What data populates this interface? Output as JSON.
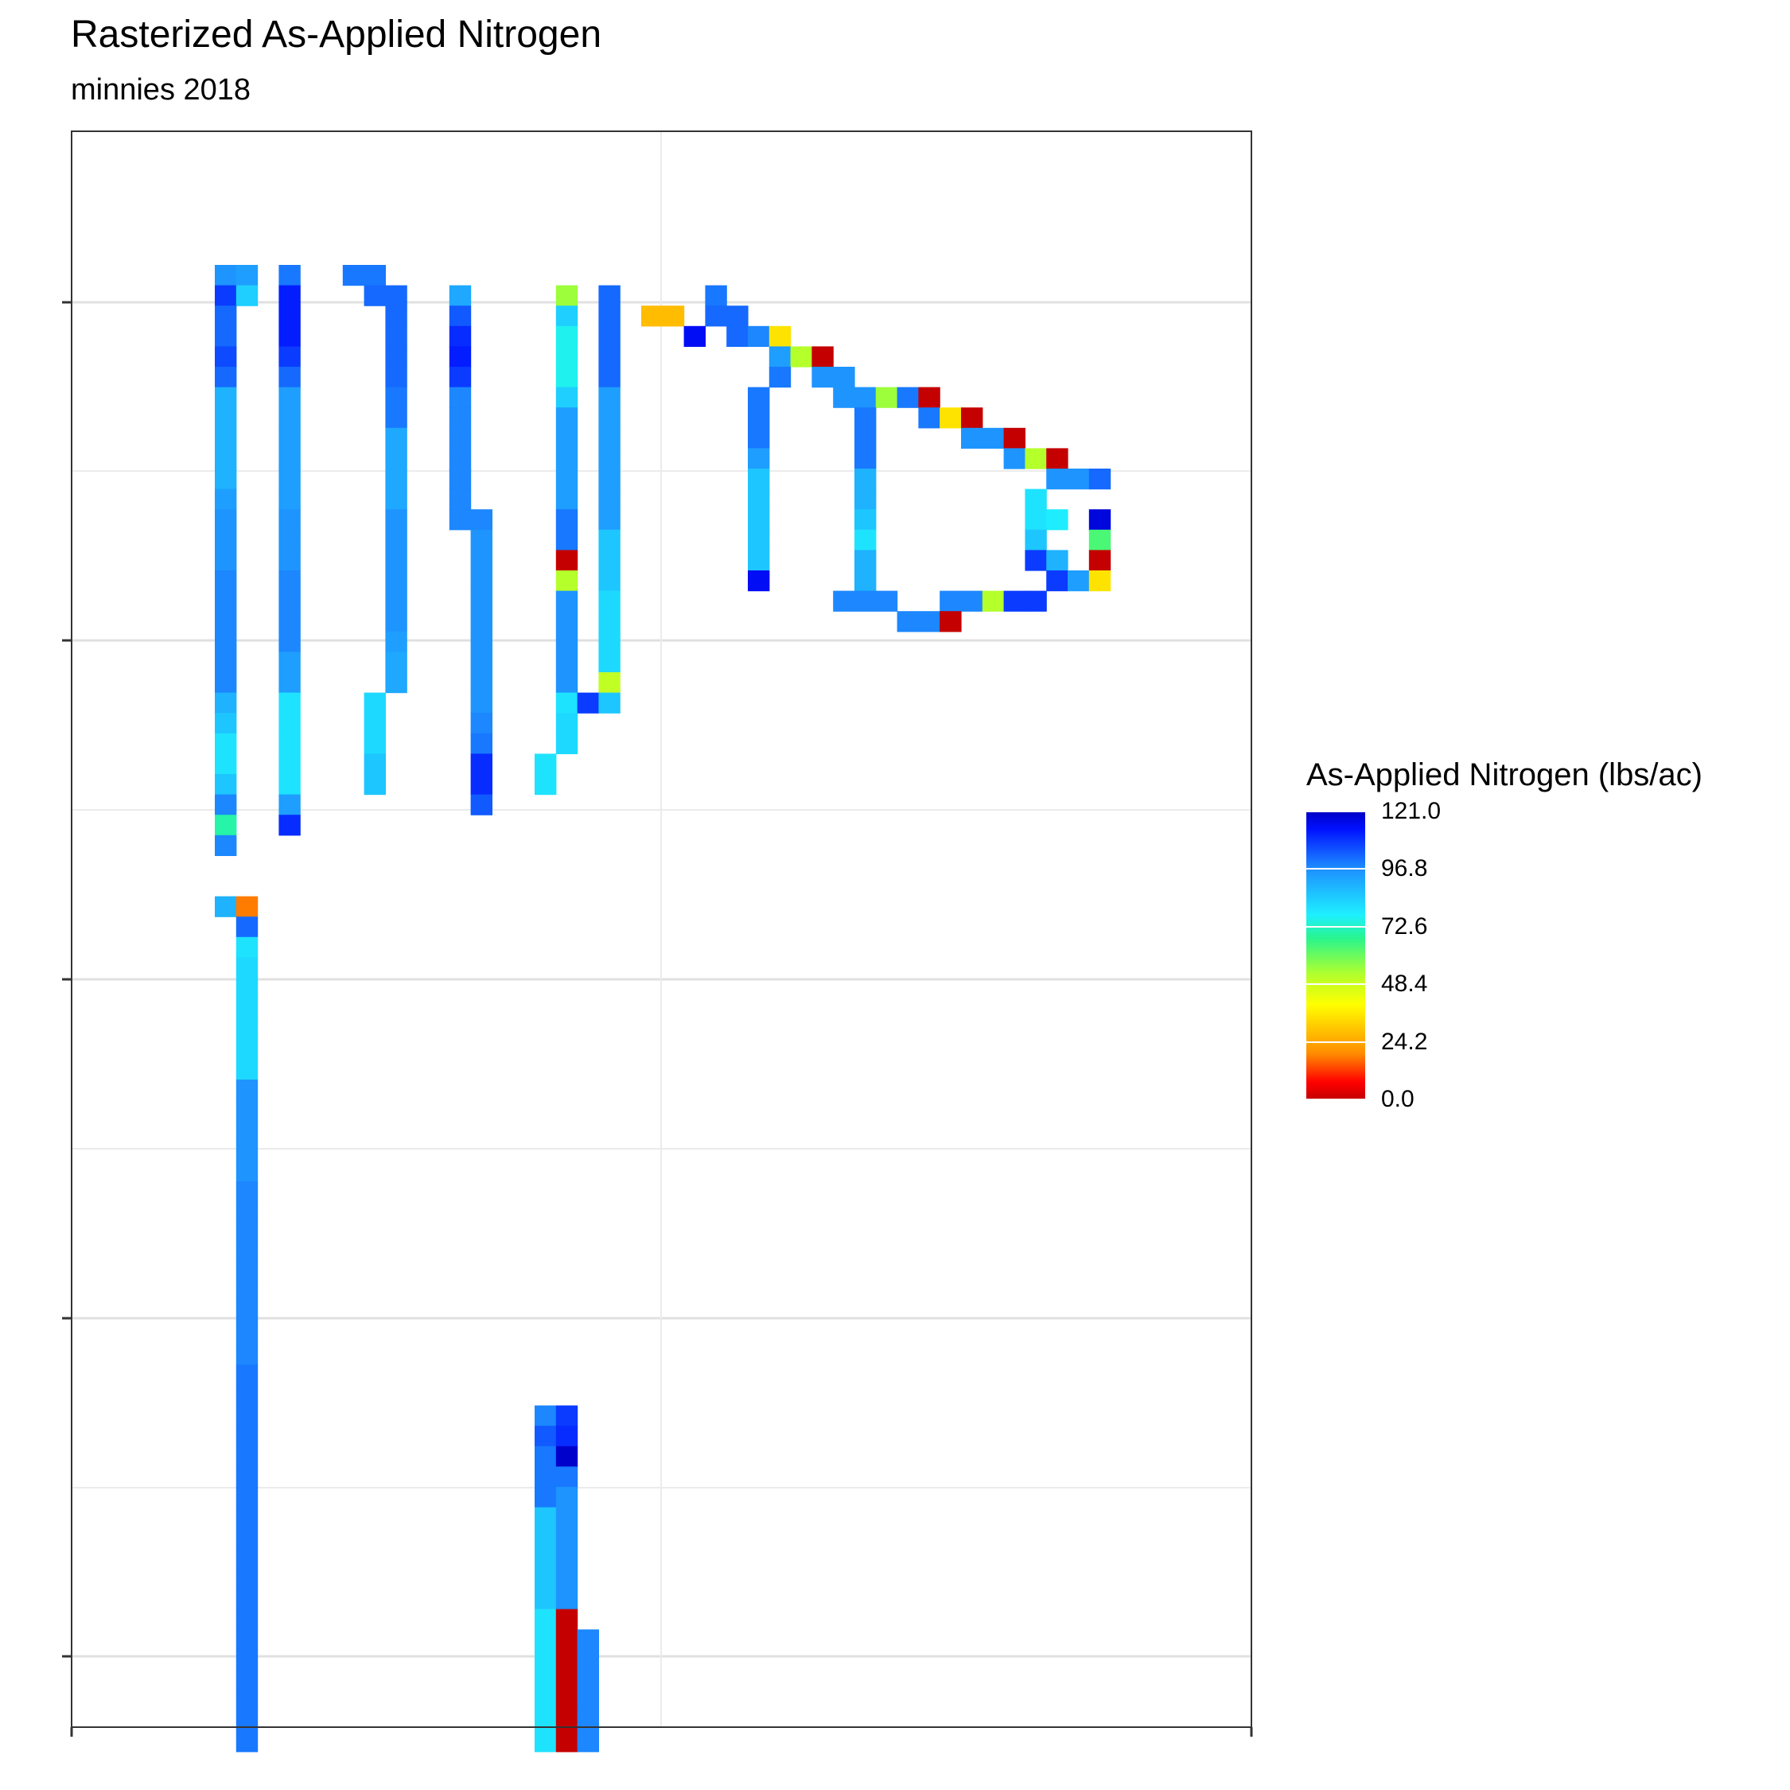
{
  "chart_data": {
    "type": "heatmap",
    "title": "Rasterized As-Applied Nitrogen",
    "subtitle": "minnies 2018",
    "xlabel": "",
    "ylabel": "",
    "x_tick_labels": [],
    "y_tick_labels": [],
    "grid": true,
    "legend": {
      "title": "As-Applied Nitrogen (lbs/ac)",
      "placement": "right",
      "breaks": [
        "121.0",
        "96.8",
        "72.6",
        "48.4",
        "24.2",
        "0.0"
      ],
      "min": 0,
      "max": 121,
      "palette": [
        "#c40000",
        "#ff0000",
        "#ff8c00",
        "#ffff00",
        "#adff2f",
        "#28f58e",
        "#1ef0ff",
        "#1e90ff",
        "#0010ff",
        "#0000c4"
      ]
    },
    "grid_size": {
      "cols": 56,
      "rows": 80
    },
    "cells": [
      [
        7,
        0,
        96
      ],
      [
        8,
        0,
        94
      ],
      [
        10,
        0,
        100
      ],
      [
        13,
        0,
        100
      ],
      [
        14,
        0,
        100
      ],
      [
        7,
        1,
        108
      ],
      [
        8,
        1,
        84
      ],
      [
        10,
        1,
        112
      ],
      [
        14,
        1,
        102
      ],
      [
        15,
        1,
        102
      ],
      [
        18,
        1,
        92
      ],
      [
        23,
        1,
        55
      ],
      [
        25,
        1,
        102
      ],
      [
        30,
        1,
        100
      ],
      [
        7,
        2,
        102
      ],
      [
        10,
        2,
        112
      ],
      [
        15,
        2,
        102
      ],
      [
        18,
        2,
        104
      ],
      [
        23,
        2,
        84
      ],
      [
        25,
        2,
        102
      ],
      [
        27,
        2,
        28
      ],
      [
        28,
        2,
        28
      ],
      [
        30,
        2,
        102
      ],
      [
        31,
        2,
        102
      ],
      [
        7,
        3,
        102
      ],
      [
        10,
        3,
        112
      ],
      [
        15,
        3,
        102
      ],
      [
        18,
        3,
        110
      ],
      [
        23,
        3,
        76
      ],
      [
        25,
        3,
        102
      ],
      [
        29,
        3,
        115
      ],
      [
        31,
        3,
        102
      ],
      [
        32,
        3,
        98
      ],
      [
        33,
        3,
        35
      ],
      [
        7,
        4,
        106
      ],
      [
        10,
        4,
        108
      ],
      [
        15,
        4,
        102
      ],
      [
        18,
        4,
        112
      ],
      [
        23,
        4,
        76
      ],
      [
        25,
        4,
        102
      ],
      [
        33,
        4,
        94
      ],
      [
        34,
        4,
        52
      ],
      [
        35,
        4,
        0
      ],
      [
        7,
        5,
        102
      ],
      [
        10,
        5,
        102
      ],
      [
        15,
        5,
        102
      ],
      [
        18,
        5,
        108
      ],
      [
        23,
        5,
        76
      ],
      [
        25,
        5,
        102
      ],
      [
        33,
        5,
        100
      ],
      [
        35,
        5,
        96
      ],
      [
        36,
        5,
        96
      ],
      [
        7,
        6,
        90
      ],
      [
        10,
        6,
        94
      ],
      [
        15,
        6,
        100
      ],
      [
        18,
        6,
        98
      ],
      [
        23,
        6,
        84
      ],
      [
        25,
        6,
        94
      ],
      [
        32,
        6,
        100
      ],
      [
        36,
        6,
        96
      ],
      [
        37,
        6,
        96
      ],
      [
        38,
        6,
        55
      ],
      [
        39,
        6,
        100
      ],
      [
        40,
        6,
        0
      ],
      [
        7,
        7,
        90
      ],
      [
        10,
        7,
        94
      ],
      [
        15,
        7,
        100
      ],
      [
        18,
        7,
        98
      ],
      [
        23,
        7,
        94
      ],
      [
        25,
        7,
        94
      ],
      [
        32,
        7,
        100
      ],
      [
        37,
        7,
        100
      ],
      [
        40,
        7,
        100
      ],
      [
        41,
        7,
        35
      ],
      [
        42,
        7,
        0
      ],
      [
        7,
        8,
        90
      ],
      [
        10,
        8,
        94
      ],
      [
        15,
        8,
        92
      ],
      [
        18,
        8,
        98
      ],
      [
        23,
        8,
        94
      ],
      [
        25,
        8,
        94
      ],
      [
        32,
        8,
        100
      ],
      [
        37,
        8,
        100
      ],
      [
        42,
        8,
        96
      ],
      [
        43,
        8,
        96
      ],
      [
        44,
        8,
        0
      ],
      [
        7,
        9,
        90
      ],
      [
        10,
        9,
        94
      ],
      [
        15,
        9,
        92
      ],
      [
        18,
        9,
        98
      ],
      [
        23,
        9,
        94
      ],
      [
        25,
        9,
        94
      ],
      [
        32,
        9,
        94
      ],
      [
        37,
        9,
        100
      ],
      [
        44,
        9,
        96
      ],
      [
        45,
        9,
        52
      ],
      [
        46,
        9,
        0
      ],
      [
        7,
        10,
        90
      ],
      [
        10,
        10,
        94
      ],
      [
        15,
        10,
        92
      ],
      [
        18,
        10,
        98
      ],
      [
        23,
        10,
        94
      ],
      [
        25,
        10,
        94
      ],
      [
        32,
        10,
        86
      ],
      [
        37,
        10,
        90
      ],
      [
        46,
        10,
        96
      ],
      [
        47,
        10,
        96
      ],
      [
        48,
        10,
        102
      ],
      [
        7,
        11,
        94
      ],
      [
        10,
        11,
        94
      ],
      [
        15,
        11,
        92
      ],
      [
        18,
        11,
        98
      ],
      [
        23,
        11,
        94
      ],
      [
        25,
        11,
        94
      ],
      [
        32,
        11,
        86
      ],
      [
        37,
        11,
        90
      ],
      [
        45,
        11,
        80
      ],
      [
        7,
        12,
        96
      ],
      [
        10,
        12,
        96
      ],
      [
        15,
        12,
        96
      ],
      [
        18,
        12,
        98
      ],
      [
        19,
        12,
        98
      ],
      [
        23,
        12,
        100
      ],
      [
        25,
        12,
        94
      ],
      [
        32,
        12,
        86
      ],
      [
        37,
        12,
        86
      ],
      [
        45,
        12,
        80
      ],
      [
        46,
        12,
        78
      ],
      [
        48,
        12,
        118
      ],
      [
        7,
        13,
        96
      ],
      [
        10,
        13,
        96
      ],
      [
        15,
        13,
        96
      ],
      [
        19,
        13,
        96
      ],
      [
        23,
        13,
        100
      ],
      [
        25,
        13,
        86
      ],
      [
        32,
        13,
        86
      ],
      [
        37,
        13,
        80
      ],
      [
        45,
        13,
        86
      ],
      [
        48,
        13,
        64
      ],
      [
        7,
        14,
        96
      ],
      [
        10,
        14,
        96
      ],
      [
        15,
        14,
        96
      ],
      [
        19,
        14,
        96
      ],
      [
        23,
        14,
        0
      ],
      [
        25,
        14,
        86
      ],
      [
        32,
        14,
        86
      ],
      [
        37,
        14,
        90
      ],
      [
        45,
        14,
        108
      ],
      [
        46,
        14,
        90
      ],
      [
        48,
        14,
        0
      ],
      [
        7,
        15,
        98
      ],
      [
        10,
        15,
        98
      ],
      [
        15,
        15,
        96
      ],
      [
        19,
        15,
        96
      ],
      [
        23,
        15,
        52
      ],
      [
        25,
        15,
        86
      ],
      [
        32,
        15,
        115
      ],
      [
        37,
        15,
        90
      ],
      [
        46,
        15,
        108
      ],
      [
        47,
        15,
        94
      ],
      [
        48,
        15,
        35
      ],
      [
        7,
        16,
        98
      ],
      [
        10,
        16,
        98
      ],
      [
        15,
        16,
        96
      ],
      [
        19,
        16,
        96
      ],
      [
        23,
        16,
        96
      ],
      [
        25,
        16,
        82
      ],
      [
        36,
        16,
        98
      ],
      [
        37,
        16,
        98
      ],
      [
        38,
        16,
        98
      ],
      [
        41,
        16,
        98
      ],
      [
        42,
        16,
        98
      ],
      [
        43,
        16,
        52
      ],
      [
        44,
        16,
        108
      ],
      [
        45,
        16,
        108
      ],
      [
        7,
        17,
        98
      ],
      [
        10,
        17,
        98
      ],
      [
        15,
        17,
        96
      ],
      [
        19,
        17,
        96
      ],
      [
        23,
        17,
        96
      ],
      [
        25,
        17,
        82
      ],
      [
        39,
        17,
        98
      ],
      [
        40,
        17,
        98
      ],
      [
        41,
        17,
        0
      ],
      [
        7,
        18,
        98
      ],
      [
        10,
        18,
        98
      ],
      [
        15,
        18,
        94
      ],
      [
        19,
        18,
        96
      ],
      [
        23,
        18,
        96
      ],
      [
        25,
        18,
        82
      ],
      [
        7,
        19,
        98
      ],
      [
        10,
        19,
        94
      ],
      [
        15,
        19,
        92
      ],
      [
        19,
        19,
        96
      ],
      [
        23,
        19,
        96
      ],
      [
        25,
        19,
        82
      ],
      [
        7,
        20,
        98
      ],
      [
        10,
        20,
        94
      ],
      [
        15,
        20,
        92
      ],
      [
        19,
        20,
        96
      ],
      [
        23,
        20,
        96
      ],
      [
        25,
        20,
        50
      ],
      [
        7,
        21,
        90
      ],
      [
        10,
        21,
        80
      ],
      [
        14,
        21,
        82
      ],
      [
        19,
        21,
        96
      ],
      [
        23,
        21,
        80
      ],
      [
        24,
        21,
        108
      ],
      [
        25,
        21,
        86
      ],
      [
        7,
        22,
        86
      ],
      [
        10,
        22,
        80
      ],
      [
        14,
        22,
        82
      ],
      [
        19,
        22,
        98
      ],
      [
        23,
        22,
        82
      ],
      [
        7,
        23,
        80
      ],
      [
        10,
        23,
        80
      ],
      [
        14,
        23,
        82
      ],
      [
        19,
        23,
        100
      ],
      [
        23,
        23,
        82
      ],
      [
        7,
        24,
        80
      ],
      [
        10,
        24,
        80
      ],
      [
        14,
        24,
        86
      ],
      [
        19,
        24,
        110
      ],
      [
        22,
        24,
        80
      ],
      [
        7,
        25,
        86
      ],
      [
        10,
        25,
        80
      ],
      [
        14,
        25,
        86
      ],
      [
        19,
        25,
        110
      ],
      [
        22,
        25,
        80
      ],
      [
        7,
        26,
        98
      ],
      [
        10,
        26,
        94
      ],
      [
        19,
        26,
        104
      ],
      [
        7,
        27,
        70
      ],
      [
        10,
        27,
        110
      ],
      [
        7,
        28,
        98
      ],
      [
        7,
        31,
        90
      ],
      [
        8,
        31,
        18
      ],
      [
        8,
        32,
        102
      ],
      [
        8,
        33,
        80
      ],
      [
        8,
        34,
        82
      ],
      [
        8,
        35,
        82
      ],
      [
        8,
        36,
        82
      ],
      [
        8,
        37,
        82
      ],
      [
        8,
        38,
        82
      ],
      [
        8,
        39,
        82
      ],
      [
        8,
        40,
        96
      ],
      [
        8,
        41,
        96
      ],
      [
        8,
        42,
        96
      ],
      [
        8,
        43,
        96
      ],
      [
        8,
        44,
        96
      ],
      [
        8,
        45,
        98
      ],
      [
        8,
        46,
        98
      ],
      [
        8,
        47,
        98
      ],
      [
        8,
        48,
        98
      ],
      [
        8,
        49,
        98
      ],
      [
        8,
        50,
        98
      ],
      [
        8,
        51,
        98
      ],
      [
        8,
        52,
        98
      ],
      [
        8,
        53,
        98
      ],
      [
        8,
        54,
        100
      ],
      [
        8,
        55,
        100
      ],
      [
        8,
        56,
        100
      ],
      [
        8,
        57,
        100
      ],
      [
        8,
        58,
        100
      ],
      [
        8,
        59,
        100
      ],
      [
        8,
        60,
        100
      ],
      [
        8,
        61,
        100
      ],
      [
        8,
        62,
        100
      ],
      [
        8,
        63,
        100
      ],
      [
        8,
        64,
        100
      ],
      [
        8,
        65,
        100
      ],
      [
        8,
        66,
        100
      ],
      [
        8,
        67,
        100
      ],
      [
        8,
        68,
        100
      ],
      [
        8,
        69,
        100
      ],
      [
        8,
        70,
        100
      ],
      [
        8,
        71,
        100
      ],
      [
        8,
        72,
        100
      ],
      [
        22,
        56,
        98
      ],
      [
        23,
        56,
        108
      ],
      [
        22,
        57,
        104
      ],
      [
        23,
        57,
        110
      ],
      [
        22,
        58,
        100
      ],
      [
        23,
        58,
        120
      ],
      [
        22,
        59,
        100
      ],
      [
        23,
        59,
        100
      ],
      [
        22,
        60,
        100
      ],
      [
        23,
        60,
        96
      ],
      [
        22,
        61,
        86
      ],
      [
        23,
        61,
        96
      ],
      [
        22,
        62,
        86
      ],
      [
        23,
        62,
        96
      ],
      [
        22,
        63,
        86
      ],
      [
        23,
        63,
        96
      ],
      [
        22,
        64,
        86
      ],
      [
        23,
        64,
        96
      ],
      [
        22,
        65,
        86
      ],
      [
        23,
        65,
        96
      ],
      [
        22,
        66,
        80
      ],
      [
        23,
        66,
        0
      ],
      [
        22,
        67,
        80
      ],
      [
        23,
        67,
        0
      ],
      [
        24,
        67,
        98
      ],
      [
        22,
        68,
        80
      ],
      [
        23,
        68,
        0
      ],
      [
        24,
        68,
        98
      ],
      [
        22,
        69,
        80
      ],
      [
        23,
        69,
        0
      ],
      [
        24,
        69,
        98
      ],
      [
        22,
        70,
        80
      ],
      [
        23,
        70,
        0
      ],
      [
        24,
        70,
        98
      ],
      [
        22,
        71,
        80
      ],
      [
        23,
        71,
        0
      ],
      [
        24,
        71,
        98
      ],
      [
        22,
        72,
        80
      ],
      [
        23,
        72,
        0
      ],
      [
        24,
        72,
        98
      ]
    ]
  }
}
